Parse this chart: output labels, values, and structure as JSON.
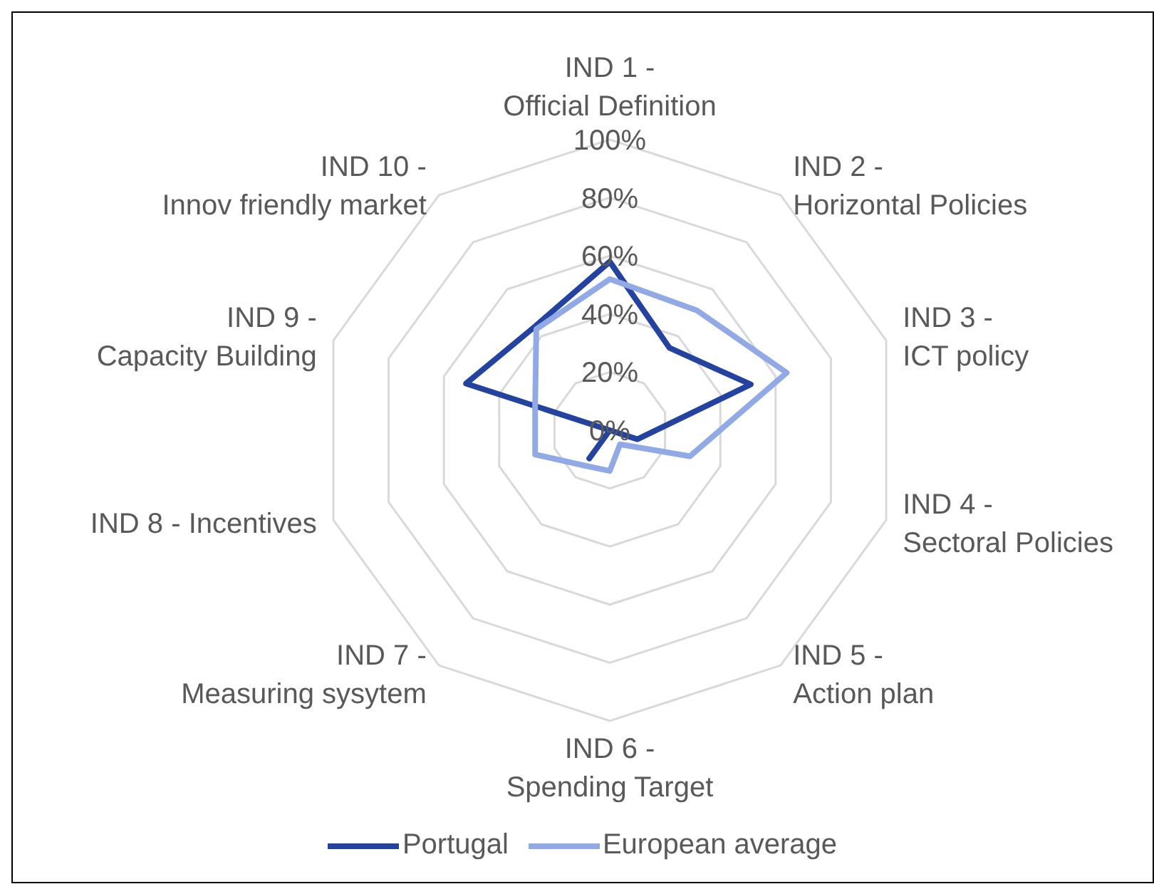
{
  "chart_data": {
    "type": "radar",
    "categories": [
      "IND 1 -\nOfficial Definition",
      "IND 2 -\nHorizontal Policies",
      "IND 3 -\nICT policy",
      "IND 4 -\nSectoral Policies",
      "IND 5 -\nAction plan",
      "IND 6 -\nSpending Target",
      "IND 7 -\nMeasuring sysytem",
      "IND 8 - Incentives",
      "IND 9 -\nCapacity Building",
      "IND 10 -\nInnov friendly market"
    ],
    "series": [
      {
        "name": "Portugal",
        "color": "#2443a0",
        "values": [
          58,
          35,
          51,
          10,
          0,
          0,
          12,
          0,
          52,
          44
        ]
      },
      {
        "name": "European average",
        "color": "#91aae6",
        "values": [
          52,
          51,
          64,
          29,
          6,
          14,
          15,
          27,
          27,
          43
        ]
      }
    ],
    "ylim": [
      0,
      100
    ],
    "yticks": [
      {
        "value": 0,
        "label": "0%"
      },
      {
        "value": 20,
        "label": "20%"
      },
      {
        "value": 40,
        "label": "40%"
      },
      {
        "value": 60,
        "label": "60%"
      },
      {
        "value": 80,
        "label": "80%"
      },
      {
        "value": 100,
        "label": "100%"
      }
    ],
    "grid": true,
    "legend": "bottom",
    "marker": "none",
    "line_style": "solid"
  }
}
